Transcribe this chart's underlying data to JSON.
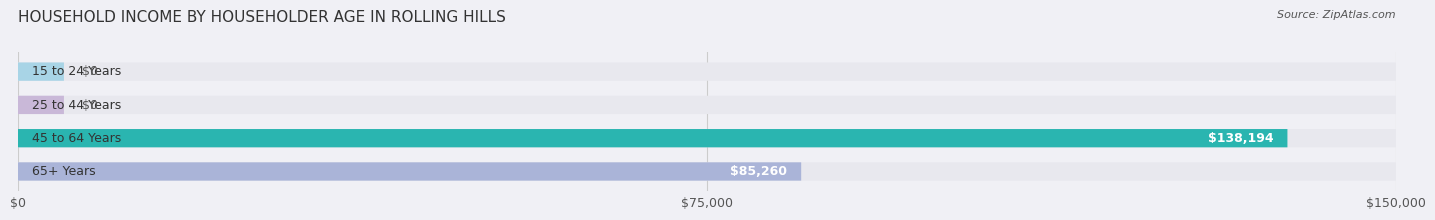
{
  "title": "HOUSEHOLD INCOME BY HOUSEHOLDER AGE IN ROLLING HILLS",
  "source": "Source: ZipAtlas.com",
  "categories": [
    "15 to 24 Years",
    "25 to 44 Years",
    "45 to 64 Years",
    "65+ Years"
  ],
  "values": [
    0,
    0,
    138194,
    85260
  ],
  "bar_colors": [
    "#a8d4e6",
    "#c9b8d8",
    "#2ab5b0",
    "#aab4d8"
  ],
  "bar_bg_color": "#e8e8ee",
  "value_labels": [
    "$0",
    "$0",
    "$138,194",
    "$85,260"
  ],
  "xlim": [
    0,
    150000
  ],
  "xticks": [
    0,
    75000,
    150000
  ],
  "xtick_labels": [
    "$0",
    "$75,000",
    "$150,000"
  ],
  "background_color": "#f0f0f5",
  "title_fontsize": 11,
  "source_fontsize": 8,
  "label_fontsize": 9,
  "tick_fontsize": 9
}
